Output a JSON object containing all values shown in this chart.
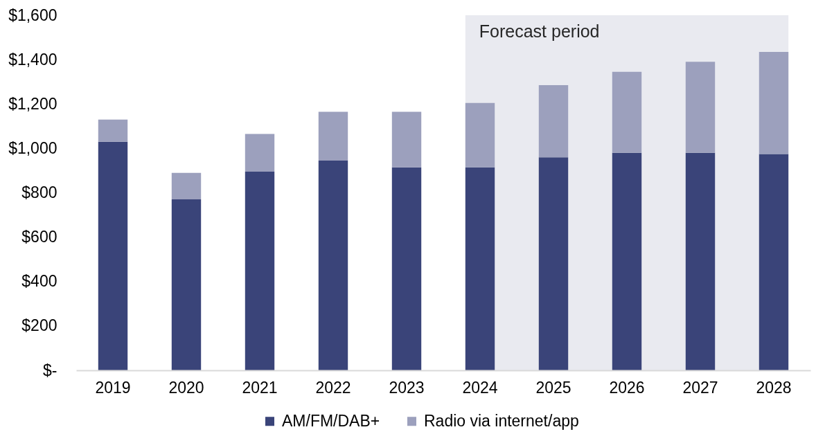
{
  "chart_data": {
    "type": "bar",
    "stacked": true,
    "categories": [
      "2019",
      "2020",
      "2021",
      "2022",
      "2023",
      "2024",
      "2025",
      "2026",
      "2027",
      "2028"
    ],
    "series": [
      {
        "name": "AM/FM/DAB+",
        "color": "#3a4479",
        "values": [
          1030,
          770,
          895,
          945,
          915,
          915,
          960,
          980,
          980,
          975
        ]
      },
      {
        "name": "Radio via internet/app",
        "color": "#9ca0bd",
        "values": [
          100,
          120,
          170,
          220,
          250,
          290,
          325,
          365,
          410,
          460
        ]
      }
    ],
    "ylim": [
      0,
      1600
    ],
    "yticks": [
      {
        "value": 0,
        "label": "$-"
      },
      {
        "value": 200,
        "label": "$200"
      },
      {
        "value": 400,
        "label": "$400"
      },
      {
        "value": 600,
        "label": "$600"
      },
      {
        "value": 800,
        "label": "$800"
      },
      {
        "value": 1000,
        "label": "$1,000"
      },
      {
        "value": 1200,
        "label": "$1,200"
      },
      {
        "value": 1400,
        "label": "$1,400"
      },
      {
        "value": 1600,
        "label": "$1,600"
      }
    ],
    "legend": "bottom",
    "bands": [
      {
        "axis": "x",
        "from": "2024",
        "to": "2028",
        "label": "Forecast period",
        "color": "#e9eaf0"
      }
    ]
  }
}
